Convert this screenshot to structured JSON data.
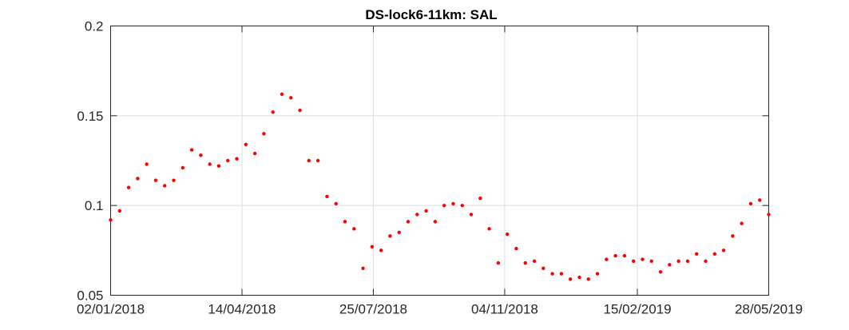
{
  "chart_data": {
    "type": "scatter",
    "title": "DS-lock6-11km: SAL",
    "xlabel": "",
    "ylabel": "",
    "x_axis_kind": "date",
    "xlim": [
      "2018-01-02",
      "2019-05-28"
    ],
    "ylim": [
      0.05,
      0.2
    ],
    "x_ticks": [
      {
        "date": "2018-01-02",
        "label": "02/01/2018"
      },
      {
        "date": "2018-04-14",
        "label": "14/04/2018"
      },
      {
        "date": "2018-07-25",
        "label": "25/07/2018"
      },
      {
        "date": "2018-11-04",
        "label": "04/11/2018"
      },
      {
        "date": "2019-02-15",
        "label": "15/02/2019"
      },
      {
        "date": "2019-05-28",
        "label": "28/05/2019"
      }
    ],
    "y_ticks": [
      {
        "value": 0.05,
        "label": "0.05"
      },
      {
        "value": 0.1,
        "label": "0.1"
      },
      {
        "value": 0.15,
        "label": "0.15"
      },
      {
        "value": 0.2,
        "label": "0.2"
      }
    ],
    "grid": true,
    "marker_color": "#ff0000",
    "series": [
      {
        "x": [
          "2018-01-02",
          "2018-01-09",
          "2018-01-16",
          "2018-01-23",
          "2018-01-30",
          "2018-02-06",
          "2018-02-13",
          "2018-02-20",
          "2018-02-27",
          "2018-03-06",
          "2018-03-13",
          "2018-03-20",
          "2018-03-27",
          "2018-04-03",
          "2018-04-10",
          "2018-04-17",
          "2018-04-24",
          "2018-05-01",
          "2018-05-08",
          "2018-05-15",
          "2018-05-22",
          "2018-05-29",
          "2018-06-05",
          "2018-06-12",
          "2018-06-19",
          "2018-06-26",
          "2018-07-03",
          "2018-07-10",
          "2018-07-17",
          "2018-07-24",
          "2018-07-31",
          "2018-08-07",
          "2018-08-14",
          "2018-08-21",
          "2018-08-28",
          "2018-09-04",
          "2018-09-11",
          "2018-09-18",
          "2018-09-25",
          "2018-10-02",
          "2018-10-09",
          "2018-10-16",
          "2018-10-23",
          "2018-10-30",
          "2018-11-06",
          "2018-11-13",
          "2018-11-20",
          "2018-11-27",
          "2018-12-04",
          "2018-12-11",
          "2018-12-18",
          "2018-12-25",
          "2019-01-01",
          "2019-01-08",
          "2019-01-15",
          "2019-01-22",
          "2019-01-29",
          "2019-02-05",
          "2019-02-12",
          "2019-02-19",
          "2019-02-26",
          "2019-03-05",
          "2019-03-12",
          "2019-03-19",
          "2019-03-26",
          "2019-04-02",
          "2019-04-09",
          "2019-04-16",
          "2019-04-23",
          "2019-04-30",
          "2019-05-07",
          "2019-05-14",
          "2019-05-21",
          "2019-05-28"
        ],
        "y": [
          0.092,
          0.097,
          0.11,
          0.115,
          0.123,
          0.114,
          0.111,
          0.114,
          0.121,
          0.131,
          0.128,
          0.123,
          0.122,
          0.125,
          0.126,
          0.134,
          0.129,
          0.14,
          0.152,
          0.162,
          0.16,
          0.153,
          0.125,
          0.125,
          0.105,
          0.101,
          0.091,
          0.087,
          0.065,
          0.077,
          0.075,
          0.083,
          0.085,
          0.091,
          0.095,
          0.097,
          0.091,
          0.1,
          0.101,
          0.1,
          0.095,
          0.104,
          0.087,
          0.068,
          0.084,
          0.076,
          0.068,
          0.069,
          0.065,
          0.062,
          0.062,
          0.059,
          0.06,
          0.059,
          0.062,
          0.07,
          0.072,
          0.072,
          0.069,
          0.07,
          0.069,
          0.063,
          0.067,
          0.069,
          0.069,
          0.073,
          0.069,
          0.073,
          0.075,
          0.083,
          0.09,
          0.101,
          0.103,
          0.095
        ]
      }
    ]
  }
}
